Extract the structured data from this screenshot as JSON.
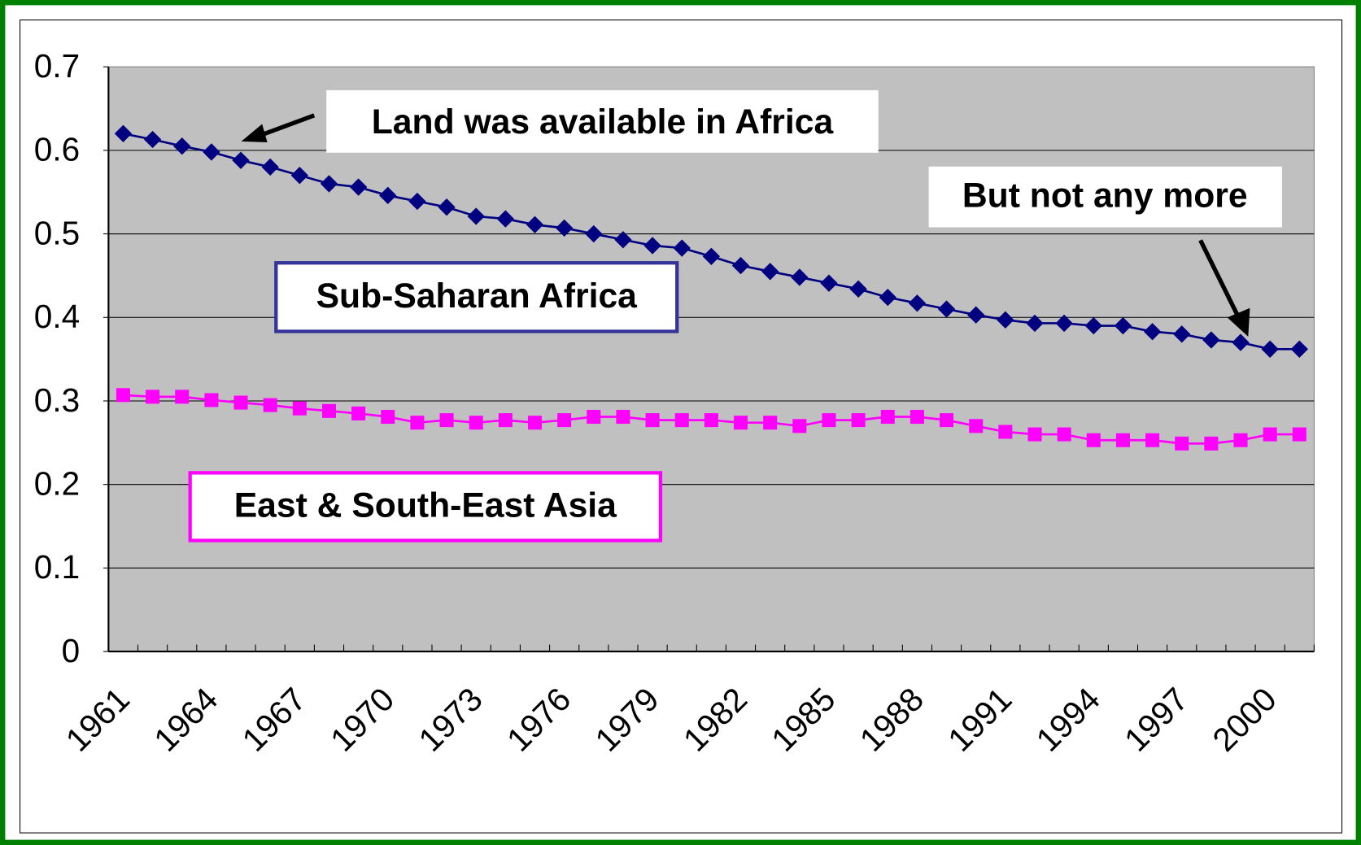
{
  "chart_data": {
    "type": "line",
    "categories": [
      "1961",
      null,
      null,
      "1964",
      null,
      null,
      "1967",
      null,
      null,
      "1970",
      null,
      null,
      "1973",
      null,
      null,
      "1976",
      null,
      null,
      "1979",
      null,
      null,
      "1982",
      null,
      null,
      "1985",
      null,
      null,
      "1988",
      null,
      null,
      "1991",
      null,
      null,
      "1994",
      null,
      null,
      "1997",
      null,
      null,
      "2000",
      null
    ],
    "series": [
      {
        "name": "Sub-Saharan Africa",
        "color": "#000080",
        "marker": "diamond",
        "values": [
          0.62,
          0.613,
          0.605,
          0.598,
          0.588,
          0.58,
          0.57,
          0.56,
          0.556,
          0.546,
          0.539,
          0.532,
          0.521,
          0.518,
          0.511,
          0.507,
          0.5,
          0.493,
          0.486,
          0.483,
          0.473,
          0.462,
          0.455,
          0.448,
          0.441,
          0.434,
          0.424,
          0.417,
          0.41,
          0.403,
          0.397,
          0.393,
          0.393,
          0.39,
          0.39,
          0.383,
          0.38,
          0.373,
          0.37,
          0.362,
          0.362
        ]
      },
      {
        "name": "East & South-East Asia",
        "color": "#ff00ff",
        "marker": "square",
        "values": [
          0.307,
          0.305,
          0.305,
          0.301,
          0.298,
          0.295,
          0.291,
          0.288,
          0.285,
          0.281,
          0.274,
          0.277,
          0.274,
          0.277,
          0.274,
          0.277,
          0.281,
          0.281,
          0.277,
          0.277,
          0.277,
          0.274,
          0.274,
          0.27,
          0.277,
          0.277,
          0.281,
          0.281,
          0.277,
          0.27,
          0.263,
          0.26,
          0.26,
          0.253,
          0.253,
          0.253,
          0.249,
          0.249,
          0.253,
          0.26,
          0.26
        ]
      }
    ],
    "annotations": [
      "Land was available in Africa",
      "But not any more"
    ],
    "ylim": [
      0,
      0.7
    ],
    "yticks": [
      0,
      0.1,
      0.2,
      0.3,
      0.4,
      0.5,
      0.6,
      0.7
    ],
    "grid": true
  }
}
